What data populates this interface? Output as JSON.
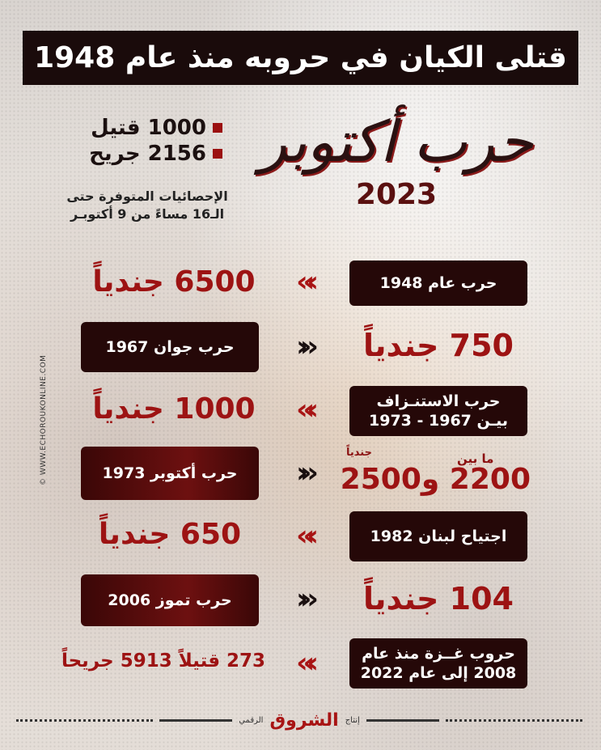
{
  "title": "قتلى الكيان في حروبه منذ عام 1948",
  "logo": {
    "calligraphy": "حرب أكتوبر",
    "year": "2023"
  },
  "current": {
    "killed": "1000 قتيل",
    "wounded": "2156 جريح",
    "note_line1": "الإحصائيات المتوفرة حتى",
    "note_line2": "الـ16 مساءً من 9 أكتوبـر"
  },
  "rows": [
    {
      "war": "حرب عام 1948",
      "value": "6500 جندياً"
    },
    {
      "war": "حرب جوان 1967",
      "value": "750 جندياً"
    },
    {
      "war_line1": "حرب الاستنـزاف",
      "war_line2": "بيـن 1967 - 1973",
      "value": "1000 جندياً"
    },
    {
      "war": "حرب أكتوبر 1973",
      "value_prefix": "ما بين",
      "value_suffix": "جندياً",
      "value": "2200 و2500"
    },
    {
      "war": "اجتياح لبنان 1982",
      "value": "650 جندياً"
    },
    {
      "war": "حرب تموز 2006",
      "value": "104 جندياً"
    },
    {
      "war_line1": "حروب غــزة منذ عام",
      "war_line2": "2008 إلى عام 2022",
      "value": "273 قتيلاً 5913 جريحاً"
    }
  ],
  "watermark": "© WWW.ECHOROUKONLINE.COM",
  "footer": {
    "prefix": "إنتاج",
    "brand": "الشروق",
    "suffix": "الرقمي"
  },
  "colors": {
    "accent": "#9d1313",
    "dark": "#250808"
  }
}
